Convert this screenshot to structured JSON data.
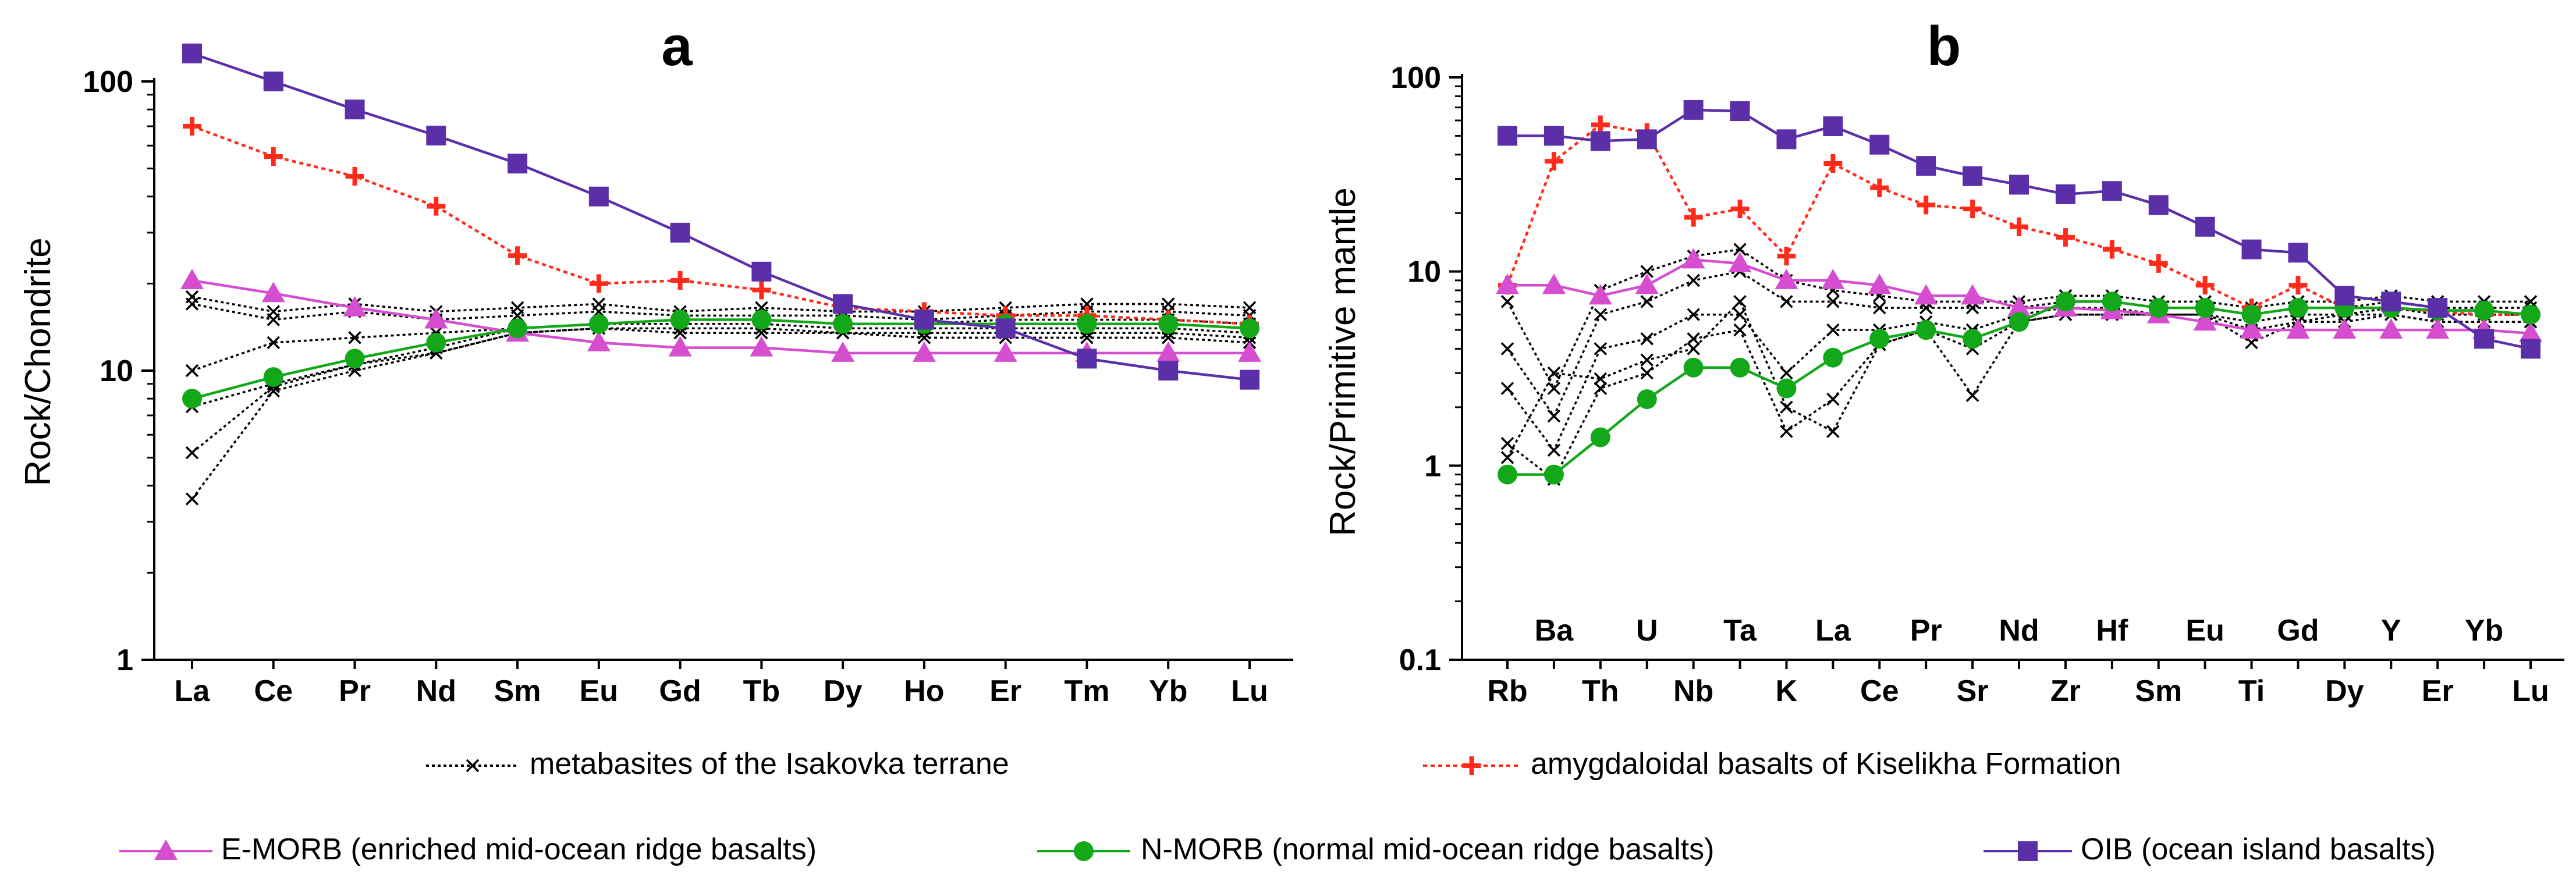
{
  "legend": [
    {
      "key": "metabasites",
      "label": "metabasites of the Isakovka terrane",
      "color": "#000000",
      "marker": "x",
      "dash": true
    },
    {
      "key": "amygdaloidal",
      "label": "amygdaloidal basalts of Kiselikha Formation",
      "color": "#ff2a1a",
      "marker": "plus",
      "dash": true
    },
    {
      "key": "emorb",
      "label": "E-MORB (enriched mid-ocean ridge basalts)",
      "color": "#d64ecf",
      "marker": "triangle",
      "dash": false
    },
    {
      "key": "nmorb",
      "label": "N-MORB (normal mid-ocean ridge basalts)",
      "color": "#12a81a",
      "marker": "circle",
      "dash": false
    },
    {
      "key": "oib",
      "label": "OIB (ocean island basalts)",
      "color": "#5a2fa8",
      "marker": "square",
      "dash": false
    }
  ],
  "chart_data": [
    {
      "panel": "a",
      "type": "line",
      "title": "a",
      "ylabel": "Rock/Chondrite",
      "xlabel": "",
      "yscale": "log",
      "ylim": [
        1,
        100
      ],
      "yticks": [
        1,
        10,
        100
      ],
      "categories": [
        "La",
        "Ce",
        "Pr",
        "Nd",
        "Sm",
        "Eu",
        "Gd",
        "Tb",
        "Dy",
        "Ho",
        "Er",
        "Tm",
        "Yb",
        "Lu"
      ],
      "series": [
        {
          "key": "oib",
          "values": [
            125,
            100,
            80,
            65,
            52,
            40,
            30,
            22,
            17,
            15,
            14,
            11,
            10,
            9.3
          ]
        },
        {
          "key": "amygdaloidal",
          "values": [
            70,
            55,
            47,
            37,
            25,
            20,
            20.5,
            19,
            16.5,
            16,
            15.5,
            15.5,
            15,
            14.5
          ]
        },
        {
          "key": "emorb",
          "values": [
            20.5,
            18.5,
            16.5,
            15,
            13.5,
            12.5,
            12,
            12,
            11.5,
            11.5,
            11.5,
            11.5,
            11.5,
            11.5
          ]
        },
        {
          "key": "nmorb",
          "values": [
            8,
            9.5,
            11,
            12.5,
            14,
            14.5,
            15,
            15,
            14.5,
            14.5,
            14.5,
            14.5,
            14.5,
            14
          ]
        },
        {
          "key": "metabasites",
          "values": [
            18,
            16,
            17,
            16,
            16.5,
            17,
            16,
            16.5,
            16,
            16,
            16.5,
            17,
            17,
            16.5
          ]
        },
        {
          "key": "metabasites",
          "values": [
            17,
            15,
            16,
            15,
            15.5,
            16,
            15.5,
            15.5,
            15.5,
            15,
            15.5,
            16,
            16,
            15.5
          ]
        },
        {
          "key": "metabasites",
          "values": [
            10,
            12.5,
            13,
            13.5,
            14,
            14.5,
            15,
            15,
            14.5,
            14.5,
            15,
            15,
            15,
            14.5
          ]
        },
        {
          "key": "metabasites",
          "values": [
            7.5,
            9,
            10.5,
            12,
            14,
            14.5,
            14.5,
            14.5,
            14,
            14,
            14,
            14,
            14,
            13.5
          ]
        },
        {
          "key": "metabasites",
          "values": [
            5.2,
            8.8,
            10.5,
            11.5,
            13.5,
            14,
            14,
            14,
            13.5,
            13.5,
            13.5,
            13.5,
            13.5,
            13
          ]
        },
        {
          "key": "metabasites",
          "values": [
            3.6,
            8.5,
            10,
            11.5,
            13.5,
            14,
            13.5,
            13.5,
            13.5,
            13,
            13,
            13,
            13,
            12.5
          ]
        }
      ]
    },
    {
      "panel": "b",
      "type": "line",
      "title": "b",
      "ylabel": "Rock/Primitive mantle",
      "xlabel": "",
      "yscale": "log",
      "ylim": [
        0.1,
        100
      ],
      "yticks": [
        0.1,
        1,
        10,
        100
      ],
      "categories": [
        "Rb",
        "Ba",
        "Th",
        "U",
        "Nb",
        "Ta",
        "K",
        "La",
        "Ce",
        "Pr",
        "Sr",
        "Nd",
        "Zr",
        "Hf",
        "Sm",
        "Eu",
        "Ti",
        "Gd",
        "Dy",
        "Y",
        "Er",
        "Yb",
        "Lu"
      ],
      "lower_row": [
        "Rb",
        "Th",
        "Nb",
        "K",
        "Ce",
        "Sr",
        "Zr",
        "Sm",
        "Ti",
        "Dy",
        "Er",
        "Lu"
      ],
      "upper_row": [
        "Ba",
        "U",
        "Ta",
        "La",
        "Pr",
        "Nd",
        "Hf",
        "Eu",
        "Gd",
        "Y",
        "Yb"
      ],
      "series": [
        {
          "key": "oib",
          "values": [
            50,
            50,
            47,
            48,
            68,
            67,
            48,
            56,
            45,
            35,
            31,
            28,
            25,
            26,
            22,
            17,
            13,
            12.5,
            7.5,
            7,
            6.5,
            4.5,
            4
          ]
        },
        {
          "key": "amygdaloidal",
          "values": [
            8.5,
            37,
            57,
            52,
            19,
            21,
            12,
            36,
            27,
            22,
            21,
            17,
            15,
            13,
            11,
            8.5,
            6.5,
            8.5,
            6.5,
            6.5,
            6.2,
            6,
            6
          ]
        },
        {
          "key": "emorb",
          "values": [
            8.5,
            8.5,
            7.5,
            8.5,
            11.5,
            11,
            9,
            9,
            8.5,
            7.5,
            7.5,
            6.5,
            6.5,
            6.3,
            6,
            5.5,
            5,
            5,
            5,
            5,
            5,
            5,
            4.8
          ]
        },
        {
          "key": "nmorb",
          "values": [
            0.9,
            0.9,
            1.4,
            2.2,
            3.2,
            3.2,
            2.5,
            3.6,
            4.5,
            5,
            4.5,
            5.5,
            7,
            7,
            6.5,
            6.5,
            6,
            6.5,
            6.5,
            6.5,
            6.3,
            6.3,
            6
          ]
        },
        {
          "key": "metabasites",
          "values": [
            7,
            2.5,
            8,
            10,
            12,
            13,
            9,
            8,
            7.5,
            7,
            7,
            7,
            7.5,
            7.5,
            7,
            7,
            6.5,
            7,
            7,
            7.5,
            7,
            7,
            7
          ]
        },
        {
          "key": "metabasites",
          "values": [
            4,
            1.8,
            6,
            7,
            9,
            10,
            7,
            7,
            6.5,
            6.5,
            6.5,
            6.5,
            7,
            7,
            6.5,
            6.5,
            6,
            6.5,
            6.5,
            7,
            6.5,
            6.5,
            6.5
          ]
        },
        {
          "key": "metabasites",
          "values": [
            2.5,
            1.2,
            4,
            4.5,
            6,
            6,
            3,
            5,
            5,
            5.5,
            5,
            6,
            6.5,
            6.5,
            6,
            6,
            5.5,
            6,
            6,
            6.5,
            6,
            6,
            6
          ]
        },
        {
          "key": "metabasites",
          "values": [
            1.3,
            0.85,
            2.5,
            3,
            4.5,
            5,
            1.5,
            2.2,
            4.2,
            5,
            2.3,
            5.5,
            6,
            6,
            6,
            6,
            5,
            5.5,
            5.5,
            6,
            5.5,
            5.5,
            5.5
          ]
        },
        {
          "key": "metabasites",
          "values": [
            1.1,
            3,
            2.8,
            3.5,
            4,
            7,
            2,
            1.5,
            4.2,
            5,
            4,
            5.5,
            6,
            6,
            6,
            6,
            4.3,
            5.5,
            6,
            6,
            5.5,
            5.5,
            5.5
          ]
        }
      ]
    }
  ]
}
